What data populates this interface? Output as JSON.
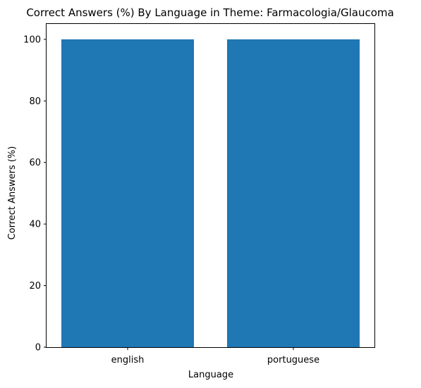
{
  "chart_data": {
    "type": "bar",
    "title": "Correct Answers (%) By Language in Theme: Farmacologia/Glaucoma",
    "xlabel": "Language",
    "ylabel": "Correct Answers (%)",
    "categories": [
      "english",
      "portuguese"
    ],
    "values": [
      100,
      100
    ],
    "ylim": [
      0,
      105
    ],
    "yticks": [
      0,
      20,
      40,
      60,
      80,
      100
    ],
    "grid": false,
    "bar_color": "#1f77b4"
  }
}
